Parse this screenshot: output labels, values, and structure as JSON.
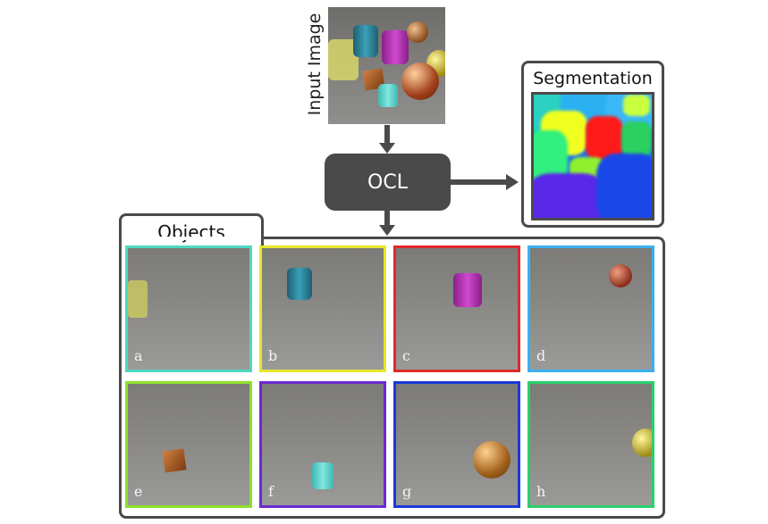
{
  "input": {
    "label": "Input Image"
  },
  "ocl": {
    "label": "OCL"
  },
  "segmentation": {
    "title": "Segmentation"
  },
  "objects": {
    "title": "Objects",
    "tiles": [
      {
        "label": "a",
        "border": "#4dd9c0"
      },
      {
        "label": "b",
        "border": "#e6e62a"
      },
      {
        "label": "c",
        "border": "#e02a2a"
      },
      {
        "label": "d",
        "border": "#3ab0f0"
      },
      {
        "label": "e",
        "border": "#8ee02a"
      },
      {
        "label": "f",
        "border": "#6a2ad0"
      },
      {
        "label": "g",
        "border": "#1a3ad8"
      },
      {
        "label": "h",
        "border": "#2ad06a"
      }
    ]
  }
}
